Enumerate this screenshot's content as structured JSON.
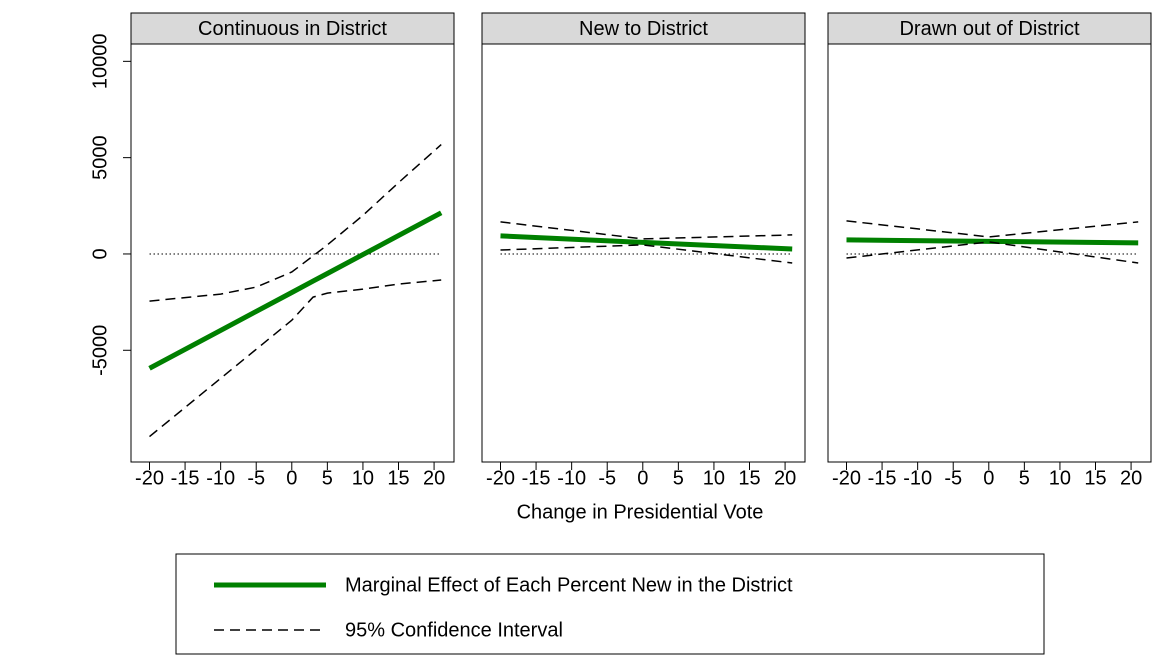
{
  "chart_data": [
    {
      "type": "line",
      "title": "Continuous in District",
      "x": [
        -20,
        -10,
        -5,
        0,
        3,
        5,
        10,
        15,
        21
      ],
      "series": [
        {
          "name": "Marginal Effect of Each Percent New in the District",
          "color": "#008000",
          "values": [
            -5938,
            -3969,
            -2984,
            -2000,
            -1409,
            -1016,
            -31,
            953,
            2135
          ]
        },
        {
          "name": "95% Confidence Interval",
          "color": "#000000",
          "lower": [
            -9479,
            -6458,
            -4948,
            -3438,
            -2240,
            -2031,
            -1823,
            -1563,
            -1354
          ],
          "upper": [
            -2448,
            -2083,
            -1719,
            -938,
            -100,
            469,
            2000,
            3700,
            5677
          ]
        }
      ],
      "xlim": [
        -22.6,
        22.8
      ],
      "ylim": [
        -10800,
        10900
      ],
      "xticks": [
        -20,
        -15,
        -10,
        -5,
        0,
        5,
        10,
        15,
        20
      ],
      "yticks": [
        -5000,
        0,
        5000,
        10000
      ]
    },
    {
      "type": "line",
      "title": "New to District",
      "x": [
        -20,
        0,
        21
      ],
      "series": [
        {
          "color": "#008000",
          "values": [
            938,
            600,
            260
          ]
        },
        {
          "color": "#000000",
          "lower": [
            208,
            469,
            -469
          ],
          "upper": [
            1667,
            781,
            990
          ]
        }
      ],
      "xlim": [
        -22.6,
        22.8
      ],
      "ylim": [
        -10800,
        10900
      ],
      "xticks": [
        -20,
        -15,
        -10,
        -5,
        0,
        5,
        10,
        15,
        20
      ]
    },
    {
      "type": "line",
      "title": "Drawn out of District",
      "x": [
        -20,
        0,
        21
      ],
      "series": [
        {
          "color": "#008000",
          "values": [
            729,
            650,
            573
          ]
        },
        {
          "color": "#000000",
          "lower": [
            -208,
            625,
            -469
          ],
          "upper": [
            1719,
            885,
            1667
          ]
        }
      ],
      "xlim": [
        -22.6,
        22.8
      ],
      "ylim": [
        -10800,
        10900
      ],
      "xticks": [
        -20,
        -15,
        -10,
        -5,
        0,
        5,
        10,
        15,
        20
      ]
    }
  ],
  "x_axis_label": "Change in Presidential Vote"
}
